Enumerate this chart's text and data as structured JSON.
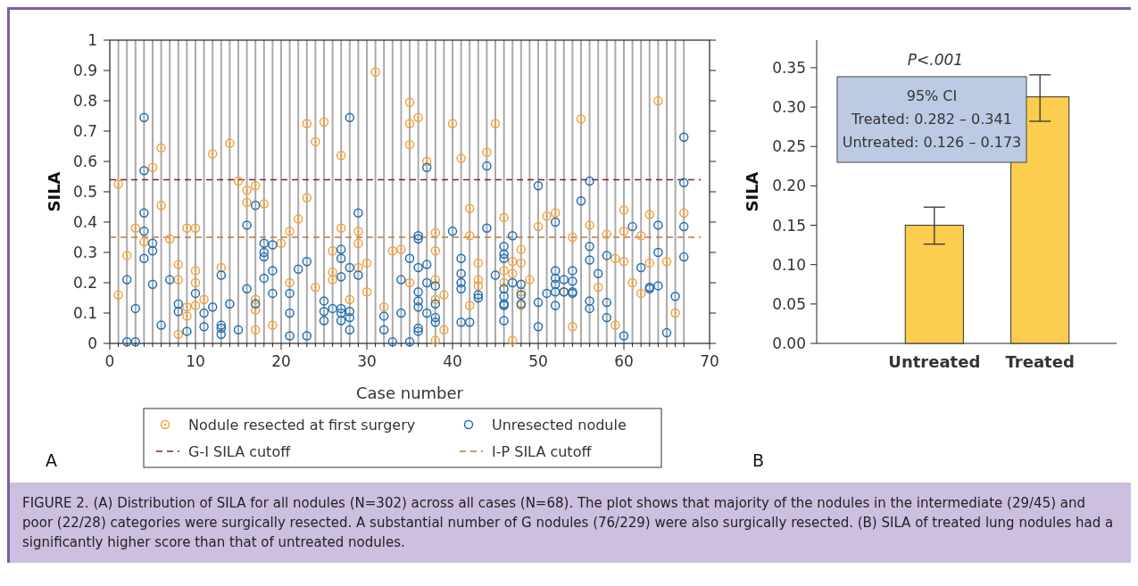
{
  "chart_data": [
    {
      "type": "scatter",
      "xlabel": "Case number",
      "ylabel": "SILA",
      "xlim": [
        0,
        70
      ],
      "ylim": [
        0,
        1
      ],
      "xticks": [
        0,
        {
          "value": 1,
          "label": null
        },
        {
          "value": 2,
          "label": null
        },
        {
          "value": 3,
          "label": null
        },
        {
          "value": 4,
          "label": null
        },
        {
          "value": 5,
          "label": null
        },
        {
          "value": 6,
          "label": null
        },
        {
          "value": 7,
          "label": null
        },
        {
          "value": 8,
          "label": null
        },
        {
          "value": 9,
          "label": null
        },
        10,
        {
          "value": 11,
          "label": null
        },
        {
          "value": 12,
          "label": null
        },
        {
          "value": 13,
          "label": null
        },
        {
          "value": 14,
          "label": null
        },
        {
          "value": 15,
          "label": null
        },
        {
          "value": 16,
          "label": null
        },
        {
          "value": 17,
          "label": null
        },
        {
          "value": 18,
          "label": null
        },
        {
          "value": 19,
          "label": null
        },
        20,
        {
          "value": 21,
          "label": null
        },
        {
          "value": 22,
          "label": null
        },
        {
          "value": 23,
          "label": null
        },
        {
          "value": 24,
          "label": null
        },
        {
          "value": 25,
          "label": null
        },
        {
          "value": 26,
          "label": null
        },
        {
          "value": 27,
          "label": null
        },
        {
          "value": 28,
          "label": null
        },
        {
          "value": 29,
          "label": null
        },
        30,
        {
          "value": 31,
          "label": null
        },
        {
          "value": 32,
          "label": null
        },
        {
          "value": 33,
          "label": null
        },
        {
          "value": 34,
          "label": null
        },
        {
          "value": 35,
          "label": null
        },
        {
          "value": 36,
          "label": null
        },
        {
          "value": 37,
          "label": null
        },
        {
          "value": 38,
          "label": null
        },
        {
          "value": 39,
          "label": null
        },
        40,
        {
          "value": 41,
          "label": null
        },
        {
          "value": 42,
          "label": null
        },
        {
          "value": 43,
          "label": null
        },
        {
          "value": 44,
          "label": null
        },
        {
          "value": 45,
          "label": null
        },
        {
          "value": 46,
          "label": null
        },
        {
          "value": 47,
          "label": null
        },
        {
          "value": 48,
          "label": null
        },
        {
          "value": 49,
          "label": null
        },
        50,
        {
          "value": 51,
          "label": null
        },
        {
          "value": 52,
          "label": null
        },
        {
          "value": 53,
          "label": null
        },
        {
          "value": 54,
          "label": null
        },
        {
          "value": 55,
          "label": null
        },
        {
          "value": 56,
          "label": null
        },
        {
          "value": 57,
          "label": null
        },
        {
          "value": 58,
          "label": null
        },
        {
          "value": 59,
          "label": null
        },
        60,
        {
          "value": 61,
          "label": null
        },
        {
          "value": 62,
          "label": null
        },
        {
          "value": 63,
          "label": null
        },
        {
          "value": 64,
          "label": null
        },
        {
          "value": 65,
          "label": null
        },
        {
          "value": 66,
          "label": null
        },
        {
          "value": 67,
          "label": null
        },
        70
      ],
      "yticks": [
        0,
        0.1,
        0.2,
        0.3,
        0.4,
        0.5,
        0.6,
        0.7,
        0.8,
        0.9,
        1
      ],
      "grid": "x",
      "legend": "bottom",
      "marker": "circle",
      "series": [
        {
          "name": "Nodule resected at first surgery",
          "color": "#f5a13c",
          "x": [
            1,
            1,
            2,
            3,
            4,
            5,
            6,
            6,
            7,
            8,
            8,
            8,
            9,
            9,
            9,
            10,
            10,
            10,
            10,
            11,
            12,
            13,
            14,
            15,
            16,
            16,
            17,
            17,
            17,
            17,
            18,
            19,
            20,
            21,
            21,
            22,
            23,
            23,
            24,
            24,
            25,
            26,
            26,
            26,
            27,
            27,
            28,
            29,
            29,
            29,
            30,
            30,
            31,
            32,
            33,
            34,
            35,
            35,
            35,
            35,
            36,
            37,
            38,
            38,
            38,
            38,
            38,
            39,
            39,
            40,
            41,
            42,
            42,
            42,
            43,
            43,
            43,
            44,
            45,
            46,
            46,
            46,
            47,
            47,
            47,
            48,
            48,
            48,
            48,
            49,
            50,
            51,
            52,
            53,
            54,
            54,
            55,
            56,
            57,
            58,
            59,
            59,
            60,
            60,
            60,
            61,
            62,
            62,
            63,
            63,
            64,
            65,
            66,
            67
          ],
          "values": [
            0.525,
            0.16,
            0.29,
            0.38,
            0.335,
            0.58,
            0.645,
            0.455,
            0.345,
            0.26,
            0.21,
            0.03,
            0.38,
            0.12,
            0.09,
            0.38,
            0.24,
            0.2,
            0.125,
            0.145,
            0.625,
            0.25,
            0.66,
            0.535,
            0.505,
            0.465,
            0.52,
            0.145,
            0.11,
            0.045,
            0.46,
            0.06,
            0.33,
            0.37,
            0.2,
            0.41,
            0.725,
            0.48,
            0.665,
            0.185,
            0.73,
            0.305,
            0.235,
            0.21,
            0.62,
            0.38,
            0.145,
            0.37,
            0.33,
            0.25,
            0.265,
            0.17,
            0.895,
            0.12,
            0.305,
            0.31,
            0.795,
            0.725,
            0.655,
            0.2,
            0.745,
            0.6,
            0.365,
            0.305,
            0.21,
            0.145,
            0.01,
            0.16,
            0.045,
            0.725,
            0.61,
            0.445,
            0.355,
            0.125,
            0.265,
            0.21,
            0.19,
            0.63,
            0.725,
            0.415,
            0.24,
            0.2,
            0.27,
            0.23,
            0.01,
            0.31,
            0.265,
            0.17,
            0.125,
            0.21,
            0.385,
            0.42,
            0.43,
            0.17,
            0.35,
            0.055,
            0.74,
            0.39,
            0.185,
            0.36,
            0.28,
            0.06,
            0.44,
            0.37,
            0.27,
            0.2,
            0.355,
            0.165,
            0.425,
            0.265,
            0.8,
            0.27,
            0.1,
            0.43
          ]
        },
        {
          "name": "Unresected nodule",
          "color": "#1f6fb5",
          "x": [
            2,
            2,
            3,
            3,
            4,
            4,
            4,
            4,
            4,
            5,
            5,
            5,
            6,
            7,
            8,
            8,
            9,
            10,
            11,
            11,
            12,
            13,
            13,
            13,
            13,
            14,
            15,
            16,
            16,
            17,
            17,
            18,
            18,
            18,
            18,
            19,
            19,
            19,
            21,
            21,
            21,
            22,
            23,
            23,
            25,
            25,
            25,
            26,
            27,
            27,
            27,
            27,
            27,
            27,
            28,
            28,
            28,
            28,
            28,
            29,
            29,
            32,
            32,
            33,
            34,
            34,
            35,
            35,
            36,
            36,
            36,
            36,
            36,
            36,
            36,
            36,
            37,
            37,
            37,
            37,
            38,
            38,
            38,
            38,
            40,
            41,
            41,
            41,
            41,
            41,
            42,
            43,
            43,
            44,
            44,
            45,
            46,
            46,
            46,
            46,
            46,
            46,
            46,
            46,
            47,
            47,
            48,
            48,
            48,
            50,
            50,
            50,
            51,
            52,
            52,
            52,
            52,
            52,
            52,
            53,
            53,
            54,
            54,
            54,
            54,
            55,
            56,
            56,
            56,
            56,
            56,
            57,
            58,
            58,
            58,
            60,
            61,
            62,
            63,
            63,
            64,
            64,
            64,
            65,
            66,
            67,
            67,
            67,
            67
          ],
          "values": [
            0.21,
            0.005,
            0.115,
            0.005,
            0.745,
            0.57,
            0.43,
            0.37,
            0.28,
            0.33,
            0.305,
            0.195,
            0.06,
            0.21,
            0.13,
            0.105,
            0.04,
            0.165,
            0.1,
            0.055,
            0.12,
            0.225,
            0.06,
            0.05,
            0.03,
            0.13,
            0.045,
            0.39,
            0.18,
            0.455,
            0.13,
            0.33,
            0.3,
            0.285,
            0.215,
            0.325,
            0.24,
            0.165,
            0.165,
            0.1,
            0.025,
            0.245,
            0.27,
            0.025,
            0.14,
            0.105,
            0.075,
            0.115,
            0.31,
            0.28,
            0.22,
            0.115,
            0.1,
            0.075,
            0.745,
            0.25,
            0.105,
            0.085,
            0.045,
            0.43,
            0.225,
            0.09,
            0.045,
            0.005,
            0.21,
            0.1,
            0.28,
            0.005,
            0.355,
            0.345,
            0.25,
            0.17,
            0.14,
            0.12,
            0.05,
            0.04,
            0.58,
            0.26,
            0.2,
            0.1,
            0.19,
            0.13,
            0.085,
            0.07,
            0.37,
            0.28,
            0.23,
            0.2,
            0.18,
            0.07,
            0.07,
            0.16,
            0.15,
            0.585,
            0.38,
            0.225,
            0.32,
            0.295,
            0.28,
            0.18,
            0.155,
            0.13,
            0.125,
            0.075,
            0.355,
            0.2,
            0.195,
            0.16,
            0.13,
            0.52,
            0.135,
            0.055,
            0.165,
            0.4,
            0.24,
            0.215,
            0.195,
            0.17,
            0.125,
            0.21,
            0.17,
            0.24,
            0.205,
            0.17,
            0.165,
            0.47,
            0.535,
            0.32,
            0.275,
            0.14,
            0.115,
            0.23,
            0.29,
            0.135,
            0.085,
            0.025,
            0.385,
            0.25,
            0.185,
            0.18,
            0.39,
            0.3,
            0.19,
            0.035,
            0.155,
            0.68,
            0.53,
            0.385,
            0.285
          ]
        }
      ],
      "ref_lines": [
        {
          "axis": "y",
          "value": 0.54,
          "label": "G-I SILA cutoff",
          "color": "#8b1a3a",
          "line_style": "dashed"
        },
        {
          "axis": "y",
          "value": 0.35,
          "label": "I-P SILA cutoff",
          "color": "#c0783a",
          "line_style": "dashed"
        }
      ],
      "annotations": [
        "A",
        "FIGURE 2. (A) Distribution of SILA for all nodules (N=302) across all cases (N=68). The plot shows that majority of the nodules in the intermediate (29/45) and poor (22/28) categories were surgically resected. A substantial number of G nodules (76/229) were also surgically resected. (B) SILA of treated lung nodules had a significantly higher score than that of untreated nodules."
      ]
    },
    {
      "type": "bar",
      "ylabel": "SILA",
      "categories": [
        "Untreated",
        "Treated"
      ],
      "values": [
        0.15,
        0.313
      ],
      "color": "#fdcd4f",
      "errors": [
        [
          0.126,
          0.173
        ],
        [
          0.282,
          0.341
        ]
      ],
      "ylim": [
        0,
        0.385
      ],
      "yticks": [
        {
          "value": 0,
          "label": "0.00"
        },
        {
          "value": 0.05,
          "label": "0.05"
        },
        {
          "value": 0.1,
          "label": "0.10"
        },
        {
          "value": 0.15,
          "label": "0.15"
        },
        {
          "value": 0.2,
          "label": "0.20"
        },
        {
          "value": 0.25,
          "label": "0.25"
        },
        {
          "value": 0.3,
          "label": "0.30"
        },
        {
          "value": 0.35,
          "label": "0.35"
        }
      ],
      "annotations": [
        "P<.001",
        "95% CI",
        "Treated: 0.282 – 0.341",
        "Untreated: 0.126 – 0.173",
        "B"
      ]
    }
  ]
}
